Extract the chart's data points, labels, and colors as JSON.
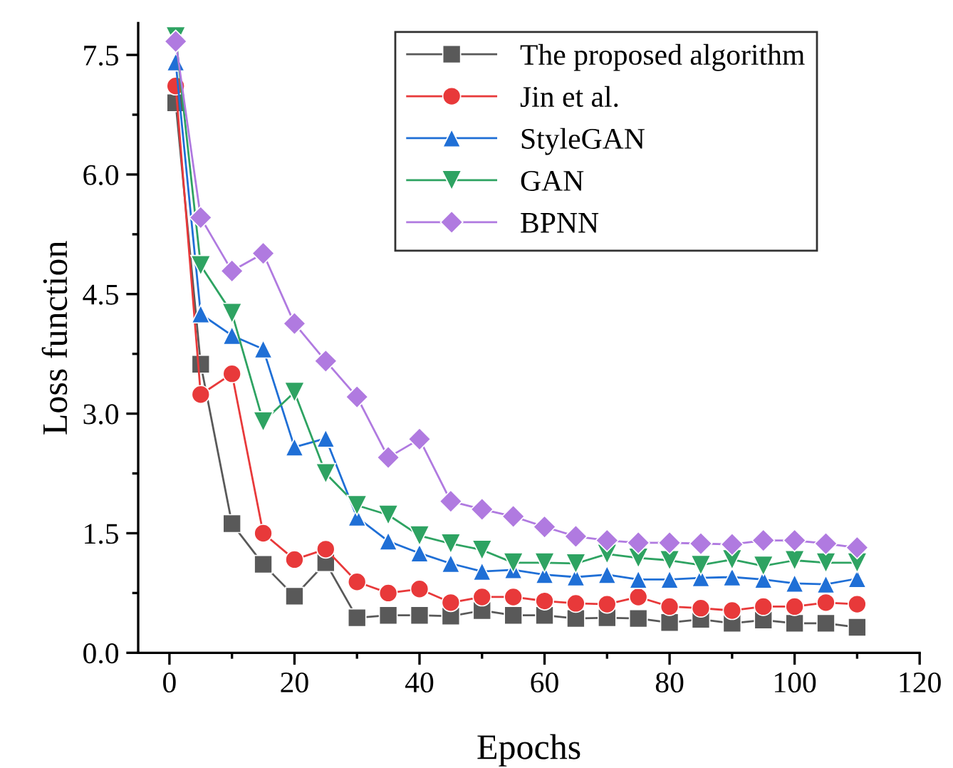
{
  "chart_data": {
    "type": "line",
    "xlabel": "Epochs",
    "ylabel": "Loss function",
    "x": [
      1,
      5,
      10,
      15,
      20,
      25,
      30,
      35,
      40,
      45,
      50,
      55,
      60,
      65,
      70,
      75,
      80,
      85,
      90,
      95,
      100,
      105,
      110
    ],
    "series": [
      {
        "name": "The proposed algorithm",
        "color": "#595959",
        "marker": "square",
        "values": [
          6.9,
          3.62,
          1.62,
          1.11,
          0.71,
          1.13,
          0.44,
          0.47,
          0.47,
          0.46,
          0.53,
          0.47,
          0.47,
          0.43,
          0.44,
          0.43,
          0.38,
          0.42,
          0.37,
          0.41,
          0.37,
          0.37,
          0.32
        ]
      },
      {
        "name": "Jin et al.",
        "color": "#e8393a",
        "marker": "circle",
        "values": [
          7.11,
          3.24,
          3.5,
          1.5,
          1.17,
          1.3,
          0.89,
          0.75,
          0.8,
          0.63,
          0.7,
          0.7,
          0.65,
          0.62,
          0.61,
          0.7,
          0.58,
          0.56,
          0.53,
          0.58,
          0.58,
          0.63,
          0.61
        ]
      },
      {
        "name": "StyleGAN",
        "color": "#1f6fd6",
        "marker": "triangle",
        "values": [
          7.41,
          4.25,
          3.98,
          3.81,
          2.58,
          2.69,
          1.7,
          1.4,
          1.25,
          1.12,
          1.02,
          1.04,
          0.98,
          0.95,
          0.98,
          0.92,
          0.92,
          0.94,
          0.95,
          0.92,
          0.87,
          0.86,
          0.93
        ]
      },
      {
        "name": "GAN",
        "color": "#2ea362",
        "marker": "triangle_down",
        "values": [
          7.73,
          4.86,
          4.26,
          2.9,
          3.27,
          2.25,
          1.85,
          1.73,
          1.47,
          1.37,
          1.29,
          1.13,
          1.13,
          1.12,
          1.24,
          1.19,
          1.16,
          1.1,
          1.17,
          1.09,
          1.16,
          1.13,
          1.13
        ]
      },
      {
        "name": "BPNN",
        "color": "#b07ae0",
        "marker": "diamond",
        "values": [
          7.67,
          5.46,
          4.79,
          5.01,
          4.13,
          3.66,
          3.21,
          2.45,
          2.68,
          1.9,
          1.8,
          1.71,
          1.58,
          1.46,
          1.41,
          1.38,
          1.38,
          1.37,
          1.36,
          1.41,
          1.41,
          1.37,
          1.32
        ]
      }
    ],
    "xlim": [
      -5,
      120
    ],
    "xticks": [
      0,
      20,
      40,
      60,
      80,
      100,
      120
    ],
    "ylim": [
      0,
      7.9
    ],
    "yticks": [
      {
        "value": 0,
        "label": "0.0"
      },
      {
        "value": 1.5,
        "label": "1.5"
      },
      {
        "value": 3,
        "label": "3.0"
      },
      {
        "value": 4.5,
        "label": "4.5"
      },
      {
        "value": 6,
        "label": "6.0"
      },
      {
        "value": 7.5,
        "label": "7.5"
      }
    ],
    "legend": "top right",
    "grid": false,
    "line_style": "solid"
  }
}
